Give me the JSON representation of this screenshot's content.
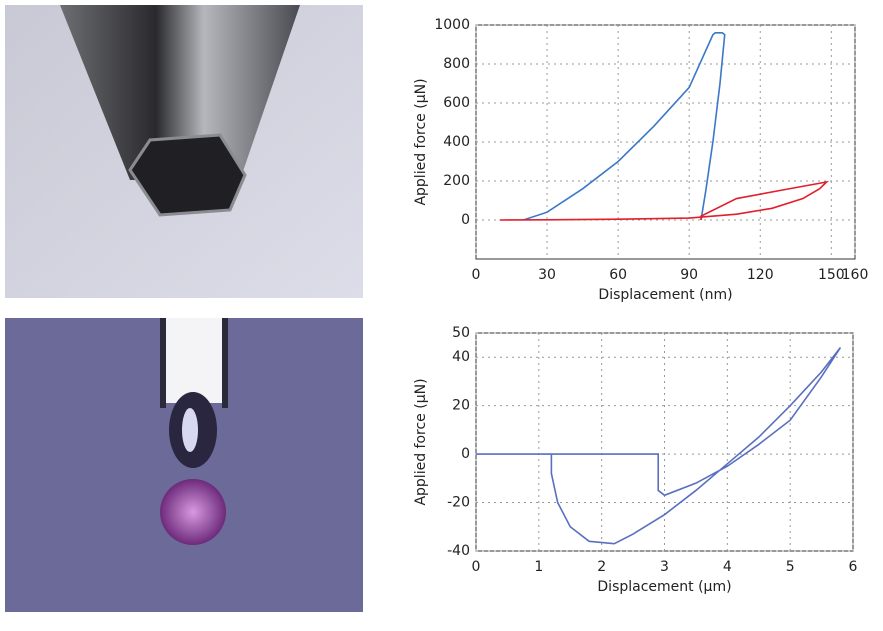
{
  "chart_data": [
    {
      "type": "line",
      "xlabel": "Displacement (nm)",
      "ylabel": "Applied force (μN)",
      "xlim": [
        0,
        160
      ],
      "xticks": [
        0,
        30,
        60,
        90,
        120,
        150,
        160
      ],
      "ylim": [
        -200,
        1000
      ],
      "yticks": [
        0,
        200,
        400,
        600,
        800,
        1000
      ],
      "grid": true,
      "series": [
        {
          "color": "#3a78c8",
          "x": [
            20,
            30,
            45,
            60,
            75,
            90,
            100,
            101,
            104,
            105,
            103,
            100,
            97,
            95
          ],
          "values": [
            0,
            40,
            160,
            300,
            480,
            680,
            950,
            960,
            960,
            950,
            700,
            400,
            150,
            0
          ]
        },
        {
          "color": "#e0202c",
          "x": [
            10,
            30,
            60,
            90,
            110,
            125,
            138,
            145,
            148,
            130,
            110,
            95,
            95
          ],
          "values": [
            0,
            1,
            4,
            10,
            30,
            60,
            110,
            160,
            195,
            155,
            110,
            20,
            0
          ]
        }
      ]
    },
    {
      "type": "line",
      "xlabel": "Displacement (μm)",
      "ylabel": "Applied force (μN)",
      "xlim": [
        0,
        6
      ],
      "xticks": [
        0,
        1,
        2,
        3,
        4,
        5,
        6
      ],
      "ylim": [
        -40,
        50
      ],
      "yticks": [
        -40,
        -20,
        0,
        20,
        40,
        50
      ],
      "grid": true,
      "series": [
        {
          "color": "#5a6fc0",
          "x": [
            0,
            2.9,
            2.9,
            3.0,
            3.5,
            4,
            4.5,
            5,
            5.5,
            5.8,
            5.5,
            5,
            4.5,
            4,
            3.5,
            3,
            2.5,
            2.2,
            1.8,
            1.5,
            1.3,
            1.2,
            1.2
          ],
          "values": [
            0,
            0,
            -15,
            -17,
            -12,
            -5,
            4,
            14,
            32,
            44,
            34,
            20,
            7,
            -4,
            -15,
            -25,
            -33,
            -37,
            -36,
            -30,
            -20,
            -8,
            0
          ]
        }
      ]
    }
  ]
}
